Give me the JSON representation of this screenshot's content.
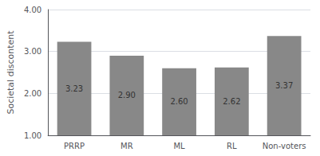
{
  "chart_data": {
    "type": "bar",
    "categories": [
      "PRRP",
      "MR",
      "ML",
      "RL",
      "Non-voters"
    ],
    "values": [
      3.23,
      2.9,
      2.6,
      2.62,
      3.37
    ],
    "value_labels": [
      "3.23",
      "2.90",
      "2.60",
      "2.62",
      "3.37"
    ],
    "data_labels": true,
    "color": "#888888",
    "ylabel": "Societal discontent",
    "ylim": [
      1.0,
      4.0
    ],
    "yticks": [
      {
        "value": 1,
        "label": "1.00"
      },
      {
        "value": 2,
        "label": "2.00"
      },
      {
        "value": 3,
        "label": "3.00"
      },
      {
        "value": 4,
        "label": "4.00"
      }
    ],
    "grid": true
  }
}
